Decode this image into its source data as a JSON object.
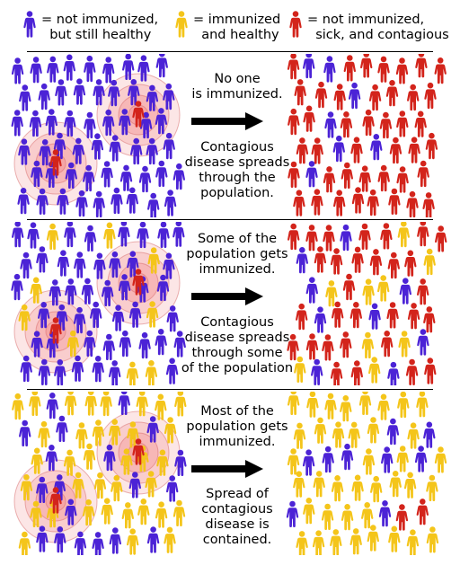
{
  "legend": [
    {
      "text": "= not immunized,\n  but still healthy",
      "color": "#4b23d6",
      "icon": "person-figure-icon"
    },
    {
      "text": "= immunized\n  and healthy",
      "color": "#f4c51a",
      "icon": "person-figure-icon"
    },
    {
      "text": "= not immunized,\n  sick, and contagious",
      "color": "#d3241b",
      "icon": "person-figure-icon"
    }
  ],
  "panels": [
    {
      "top_text": "No one\nis immunized.",
      "bottom_text": "Contagious\ndisease spreads\nthrough the\npopulation.",
      "left_crowd": {
        "immunized_share": 0.0,
        "sick_share": 0.05
      },
      "right_crowd": {
        "immunized_share": 0.0,
        "sick_share": 0.85
      }
    },
    {
      "top_text": "Some of the\npopulation gets\nimmunized.",
      "bottom_text": "Contagious\ndisease spreads\nthrough some\nof the population",
      "left_crowd": {
        "immunized_share": 0.15,
        "sick_share": 0.05
      },
      "right_crowd": {
        "immunized_share": 0.15,
        "sick_share": 0.7
      }
    },
    {
      "top_text": "Most of the\npopulation gets\nimmunized.",
      "bottom_text": "Spread of\ncontagious\ndisease is\ncontained.",
      "left_crowd": {
        "immunized_share": 0.75,
        "sick_share": 0.05
      },
      "right_crowd": {
        "immunized_share": 0.75,
        "sick_share": 0.05
      }
    }
  ],
  "colors": {
    "healthy": "#4b23d6",
    "immunized": "#f4c51a",
    "sick": "#d3241b",
    "halo": "#f28d8d",
    "arrow": "#000000"
  }
}
